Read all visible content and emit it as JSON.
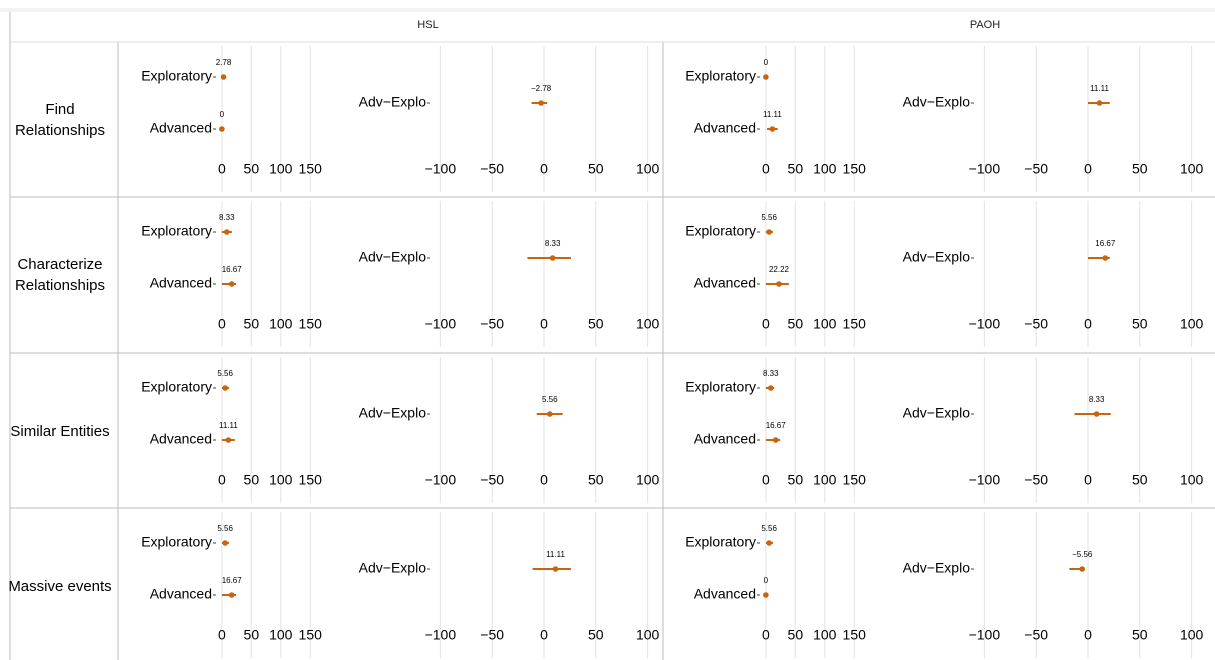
{
  "facets": {
    "columns": [
      "HSL",
      "PAOH"
    ],
    "rows": [
      "Find Relationships",
      "Characterize Relationships",
      "Similar Entities",
      "Massive events"
    ]
  },
  "chart_data": [
    {
      "type": "pointrange",
      "color": "#c8650f",
      "grid": true,
      "categories": [
        "Exploratory",
        "Advanced"
      ],
      "values": [
        2.78,
        0
      ],
      "value_labels": [
        "2.78",
        "0"
      ],
      "lower": [
        0,
        0
      ],
      "upper": [
        6,
        0
      ],
      "xlim": [
        -10,
        170
      ],
      "xticks": [
        0,
        50,
        100,
        150
      ]
    },
    {
      "type": "pointrange",
      "color": "#c8650f",
      "grid": true,
      "categories": [
        "Adv−Explo"
      ],
      "values": [
        -2.78
      ],
      "value_labels": [
        "−2.78"
      ],
      "lower": [
        -12
      ],
      "upper": [
        3
      ],
      "xlim": [
        -110,
        110
      ],
      "xticks": [
        {
          "value": -100,
          "label": "−100"
        },
        {
          "value": -50,
          "label": "−50"
        },
        0,
        50,
        100
      ]
    },
    {
      "type": "pointrange",
      "color": "#c8650f",
      "grid": true,
      "categories": [
        "Exploratory",
        "Advanced"
      ],
      "values": [
        0,
        11.11
      ],
      "value_labels": [
        "0",
        "11.11"
      ],
      "lower": [
        0,
        2
      ],
      "upper": [
        0,
        20
      ],
      "xlim": [
        -10,
        170
      ],
      "xticks": [
        0,
        50,
        100,
        150
      ]
    },
    {
      "type": "pointrange",
      "color": "#c8650f",
      "grid": true,
      "categories": [
        "Adv−Explo"
      ],
      "values": [
        11.11
      ],
      "value_labels": [
        "11.11"
      ],
      "lower": [
        0
      ],
      "upper": [
        21
      ],
      "xlim": [
        -110,
        110
      ],
      "xticks": [
        {
          "value": -100,
          "label": "−100"
        },
        {
          "value": -50,
          "label": "−50"
        },
        0,
        50,
        100
      ]
    },
    {
      "type": "pointrange",
      "color": "#c8650f",
      "grid": true,
      "categories": [
        "Exploratory",
        "Advanced"
      ],
      "values": [
        8.33,
        16.67
      ],
      "value_labels": [
        "8.33",
        "16.67"
      ],
      "lower": [
        0,
        0
      ],
      "upper": [
        17,
        24
      ],
      "xlim": [
        -10,
        170
      ],
      "xticks": [
        0,
        50,
        100,
        150
      ]
    },
    {
      "type": "pointrange",
      "color": "#c8650f",
      "grid": true,
      "categories": [
        "Adv−Explo"
      ],
      "values": [
        8.33
      ],
      "value_labels": [
        "8.33"
      ],
      "lower": [
        -16
      ],
      "upper": [
        26
      ],
      "xlim": [
        -110,
        110
      ],
      "xticks": [
        {
          "value": -100,
          "label": "−100"
        },
        {
          "value": -50,
          "label": "−50"
        },
        0,
        50,
        100
      ]
    },
    {
      "type": "pointrange",
      "color": "#c8650f",
      "grid": true,
      "categories": [
        "Exploratory",
        "Advanced"
      ],
      "values": [
        5.56,
        22.22
      ],
      "value_labels": [
        "5.56",
        "22.22"
      ],
      "lower": [
        0,
        0
      ],
      "upper": [
        12,
        39
      ],
      "xlim": [
        -10,
        170
      ],
      "xticks": [
        0,
        50,
        100,
        150
      ]
    },
    {
      "type": "pointrange",
      "color": "#c8650f",
      "grid": true,
      "categories": [
        "Adv−Explo"
      ],
      "values": [
        16.67
      ],
      "value_labels": [
        "16.67"
      ],
      "lower": [
        0
      ],
      "upper": [
        21
      ],
      "xlim": [
        -110,
        110
      ],
      "xticks": [
        {
          "value": -100,
          "label": "−100"
        },
        {
          "value": -50,
          "label": "−50"
        },
        0,
        50,
        100
      ]
    },
    {
      "type": "pointrange",
      "color": "#c8650f",
      "grid": true,
      "categories": [
        "Exploratory",
        "Advanced"
      ],
      "values": [
        5.56,
        11.11
      ],
      "value_labels": [
        "5.56",
        "11.11"
      ],
      "lower": [
        0,
        0
      ],
      "upper": [
        12,
        22
      ],
      "xlim": [
        -10,
        170
      ],
      "xticks": [
        0,
        50,
        100,
        150
      ]
    },
    {
      "type": "pointrange",
      "color": "#c8650f",
      "grid": true,
      "categories": [
        "Adv−Explo"
      ],
      "values": [
        5.56
      ],
      "value_labels": [
        "5.56"
      ],
      "lower": [
        -7
      ],
      "upper": [
        18
      ],
      "xlim": [
        -110,
        110
      ],
      "xticks": [
        {
          "value": -100,
          "label": "−100"
        },
        {
          "value": -50,
          "label": "−50"
        },
        0,
        50,
        100
      ]
    },
    {
      "type": "pointrange",
      "color": "#c8650f",
      "grid": true,
      "categories": [
        "Exploratory",
        "Advanced"
      ],
      "values": [
        8.33,
        16.67
      ],
      "value_labels": [
        "8.33",
        "16.67"
      ],
      "lower": [
        0,
        0
      ],
      "upper": [
        14,
        24
      ],
      "xlim": [
        -10,
        170
      ],
      "xticks": [
        0,
        50,
        100,
        150
      ]
    },
    {
      "type": "pointrange",
      "color": "#c8650f",
      "grid": true,
      "categories": [
        "Adv−Explo"
      ],
      "values": [
        8.33
      ],
      "value_labels": [
        "8.33"
      ],
      "lower": [
        -13
      ],
      "upper": [
        22
      ],
      "xlim": [
        -110,
        110
      ],
      "xticks": [
        {
          "value": -100,
          "label": "−100"
        },
        {
          "value": -50,
          "label": "−50"
        },
        0,
        50,
        100
      ]
    },
    {
      "type": "pointrange",
      "color": "#c8650f",
      "grid": true,
      "categories": [
        "Exploratory",
        "Advanced"
      ],
      "values": [
        5.56,
        16.67
      ],
      "value_labels": [
        "5.56",
        "16.67"
      ],
      "lower": [
        0,
        0
      ],
      "upper": [
        12,
        24
      ],
      "xlim": [
        -10,
        170
      ],
      "xticks": [
        0,
        50,
        100,
        150
      ]
    },
    {
      "type": "pointrange",
      "color": "#c8650f",
      "grid": true,
      "categories": [
        "Adv−Explo"
      ],
      "values": [
        11.11
      ],
      "value_labels": [
        "11.11"
      ],
      "lower": [
        -11
      ],
      "upper": [
        26
      ],
      "xlim": [
        -110,
        110
      ],
      "xticks": [
        {
          "value": -100,
          "label": "−100"
        },
        {
          "value": -50,
          "label": "−50"
        },
        0,
        50,
        100
      ]
    },
    {
      "type": "pointrange",
      "color": "#c8650f",
      "grid": true,
      "categories": [
        "Exploratory",
        "Advanced"
      ],
      "values": [
        5.56,
        0
      ],
      "value_labels": [
        "5.56",
        "0"
      ],
      "lower": [
        0,
        0
      ],
      "upper": [
        12,
        0
      ],
      "xlim": [
        -10,
        170
      ],
      "xticks": [
        0,
        50,
        100,
        150
      ]
    },
    {
      "type": "pointrange",
      "color": "#c8650f",
      "grid": true,
      "categories": [
        "Adv−Explo"
      ],
      "values": [
        -5.56
      ],
      "value_labels": [
        "−5.56"
      ],
      "lower": [
        -18
      ],
      "upper": [
        -5
      ],
      "xlim": [
        -110,
        110
      ],
      "xticks": [
        {
          "value": -100,
          "label": "−100"
        },
        {
          "value": -50,
          "label": "−50"
        },
        0,
        50,
        100
      ]
    }
  ]
}
